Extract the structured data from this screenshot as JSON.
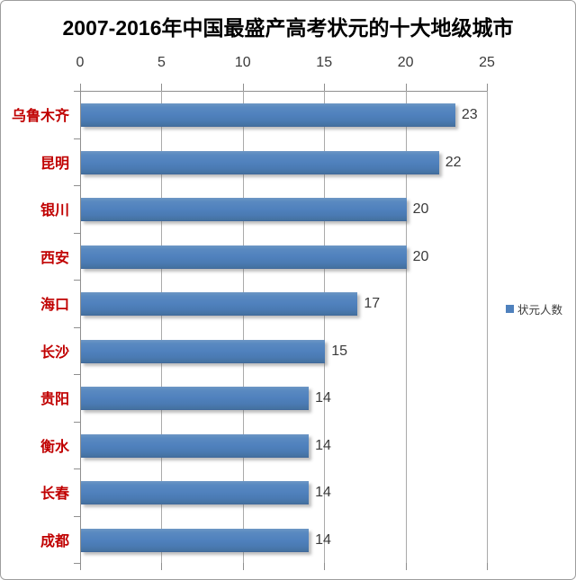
{
  "chart": {
    "title": "2007-2016年中国最盛产高考状元的十大地级城市",
    "legend": {
      "label": "状元人数",
      "marker_color": "#4F81BD"
    },
    "colors": {
      "bar": "#4F81BD",
      "category_label": "#C00000",
      "value_label": "#3A3A3A",
      "axis_line": "#8F8F8F",
      "gridline": "#AAAAAA",
      "title": "#000000"
    }
  },
  "chart_data": {
    "type": "bar",
    "orientation": "horizontal",
    "title": "2007-2016年中国最盛产高考状元的十大地级城市",
    "categories": [
      "乌鲁木齐",
      "昆明",
      "银川",
      "西安",
      "海口",
      "长沙",
      "贵阳",
      "衡水",
      "长春",
      "成都"
    ],
    "series": [
      {
        "name": "状元人数",
        "values": [
          23,
          22,
          20,
          20,
          17,
          15,
          14,
          14,
          14,
          14
        ]
      }
    ],
    "xlabel": "",
    "ylabel": "",
    "xlim": [
      0,
      25
    ],
    "xticks": [
      0,
      5,
      10,
      15,
      20,
      25
    ],
    "xtick_position": "top",
    "grid": true,
    "value_labels": true,
    "legend_position": "right"
  }
}
